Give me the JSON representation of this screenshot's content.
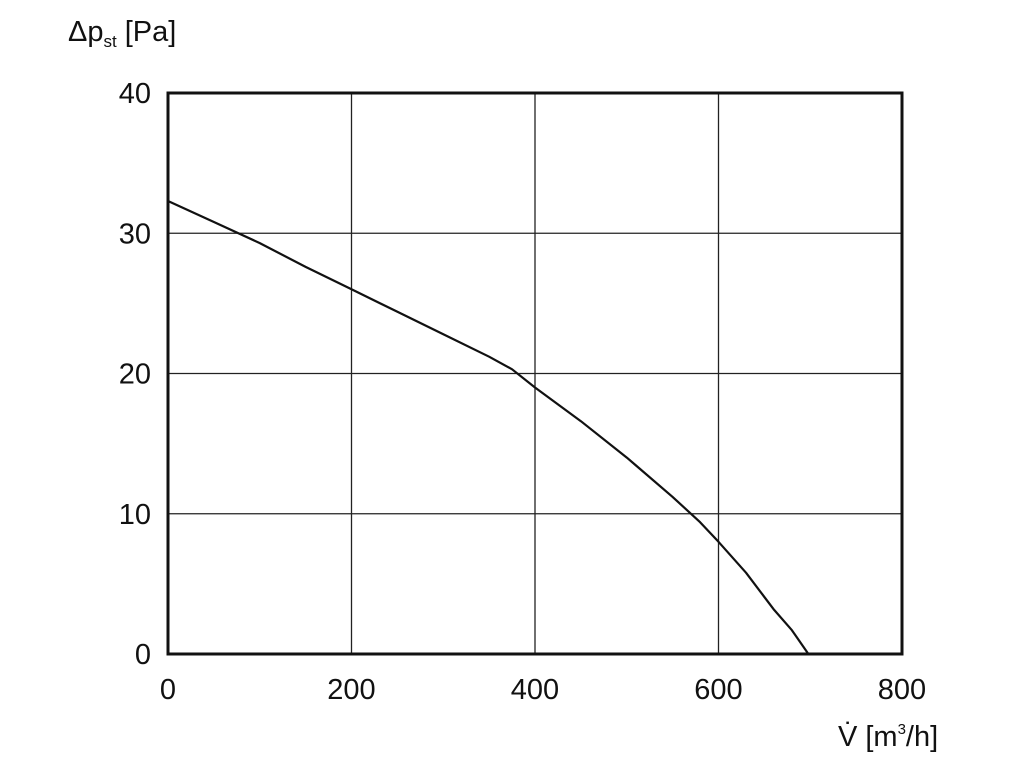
{
  "chart_data": {
    "type": "line",
    "title": "",
    "ylabel": {
      "main": "Δp",
      "subscript": "st",
      "unit": "[Pa]"
    },
    "xlabel": {
      "main": "V̇",
      "unit_prefix": "[m",
      "superscript": "3",
      "unit_suffix": "/h]"
    },
    "xlim": [
      0,
      800
    ],
    "ylim": [
      0,
      40
    ],
    "x_ticks": [
      0,
      200,
      400,
      600,
      800
    ],
    "y_ticks": [
      0,
      10,
      20,
      30,
      40
    ],
    "x_tick_labels": [
      "0",
      "200",
      "400",
      "600",
      "800"
    ],
    "y_tick_labels": [
      "0",
      "10",
      "20",
      "30",
      "40"
    ],
    "grid": true,
    "series": [
      {
        "points": [
          [
            0,
            32.3
          ],
          [
            50,
            30.8
          ],
          [
            100,
            29.3
          ],
          [
            150,
            27.6
          ],
          [
            200,
            26.0
          ],
          [
            250,
            24.4
          ],
          [
            300,
            22.8
          ],
          [
            350,
            21.2
          ],
          [
            375,
            20.3
          ],
          [
            400,
            19.0
          ],
          [
            450,
            16.6
          ],
          [
            500,
            14.0
          ],
          [
            550,
            11.2
          ],
          [
            580,
            9.4
          ],
          [
            600,
            8.0
          ],
          [
            630,
            5.8
          ],
          [
            660,
            3.2
          ],
          [
            680,
            1.7
          ],
          [
            698,
            0.0
          ]
        ]
      }
    ]
  }
}
